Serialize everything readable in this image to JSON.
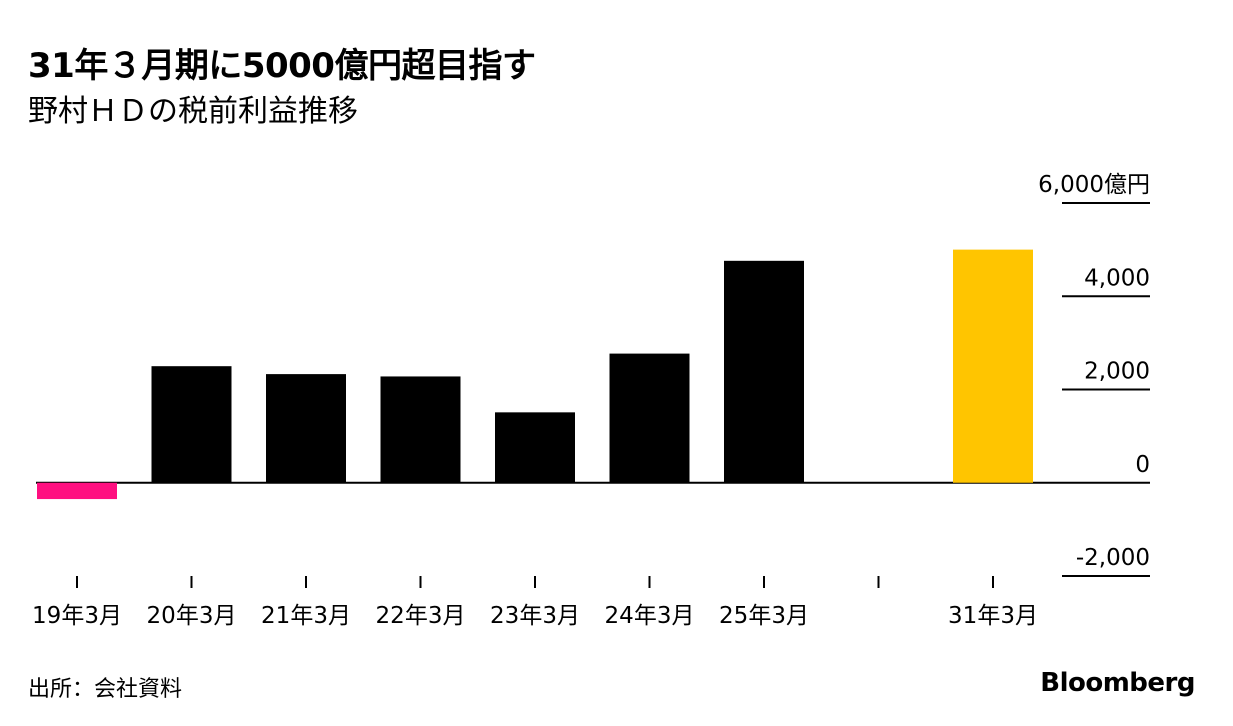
{
  "title": "31年３月期に5000億円超目指す",
  "subtitle": "野村ＨＤの税前利益推移",
  "source": "出所：会社資料",
  "brand": "Bloomberg",
  "chart_data": {
    "type": "bar",
    "categories": [
      "19年3月",
      "20年3月",
      "21年3月",
      "22年3月",
      "23年3月",
      "24年3月",
      "25年3月",
      "",
      "31年3月"
    ],
    "values": [
      -350,
      2500,
      2330,
      2280,
      1510,
      2770,
      4760,
      null,
      5000
    ],
    "bar_colors": [
      "#ff0f80",
      "#000000",
      "#000000",
      "#000000",
      "#000000",
      "#000000",
      "#000000",
      null,
      "#ffc500"
    ],
    "ylim": [
      -2000,
      6000
    ],
    "yticks": [
      6000,
      4000,
      2000,
      0,
      -2000
    ],
    "ytick_labels": [
      "6,000億円",
      "4,000",
      "2,000",
      "0",
      "-2,000"
    ],
    "y_axis_side": "right",
    "grid": false
  }
}
